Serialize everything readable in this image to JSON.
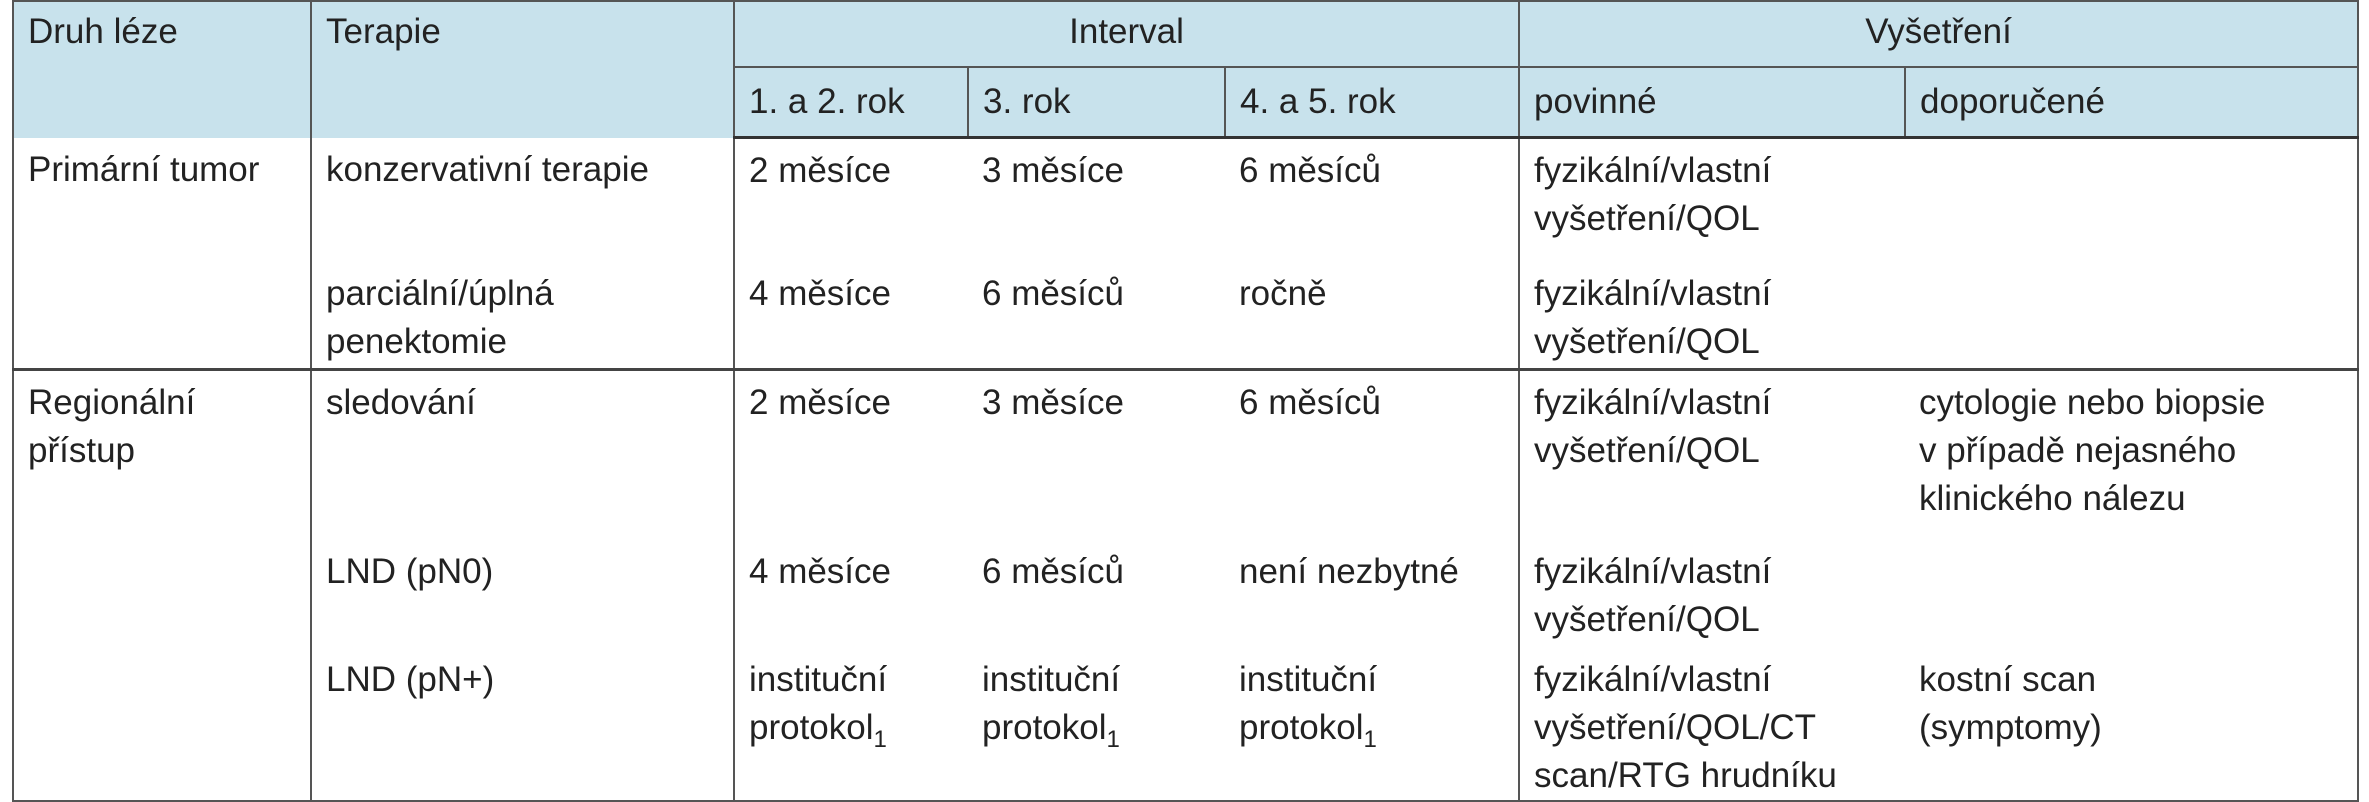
{
  "header": {
    "lesion": "Druh léze",
    "therapy": "Terapie",
    "interval": {
      "title": "Interval",
      "columns": [
        "1. a 2. rok",
        "3. rok",
        "4. a 5. rok"
      ]
    },
    "exam": {
      "title": "Vyšetření",
      "columns": [
        "povinné",
        "doporučené"
      ]
    }
  },
  "groups": [
    {
      "lesion": [
        "Primární tumor"
      ],
      "rows": [
        {
          "therapy": [
            "konzervativní terapie"
          ],
          "interval": [
            [
              "2 měsíce"
            ],
            [
              "3 měsíce"
            ],
            [
              "6 měsíců"
            ]
          ],
          "mandatory": [
            "fyzikální/vlastní",
            "vyšetření/QOL"
          ],
          "recommended": []
        },
        {
          "therapy": [
            "parciální/úplná",
            "penektomie"
          ],
          "interval": [
            [
              "4 měsíce"
            ],
            [
              "6 měsíců"
            ],
            [
              "ročně"
            ]
          ],
          "mandatory": [
            "fyzikální/vlastní",
            "vyšetření/QOL"
          ],
          "recommended": []
        }
      ]
    },
    {
      "lesion": [
        "Regionální",
        "přístup"
      ],
      "rows": [
        {
          "therapy": [
            "sledování"
          ],
          "interval": [
            [
              "2 měsíce"
            ],
            [
              "3 měsíce"
            ],
            [
              "6 měsíců"
            ]
          ],
          "mandatory": [
            "fyzikální/vlastní",
            "vyšetření/QOL"
          ],
          "recommended": [
            "cytologie nebo biopsie",
            "v případě nejasného",
            "klinického nálezu"
          ]
        },
        {
          "therapy": [
            "LND (pN0)"
          ],
          "interval": [
            [
              "4 měsíce"
            ],
            [
              "6 měsíců"
            ],
            [
              "není nezbytné"
            ]
          ],
          "mandatory": [
            "fyzikální/vlastní",
            "vyšetření/QOL"
          ],
          "recommended": []
        },
        {
          "therapy": [
            "LND (pN+)"
          ],
          "interval": [
            [
              "instituční",
              {
                "text": "protokol",
                "sub": "1"
              }
            ],
            [
              "instituční",
              {
                "text": "protokol",
                "sub": "1"
              }
            ],
            [
              "instituční",
              {
                "text": "protokol",
                "sub": "1"
              }
            ]
          ],
          "mandatory": [
            "fyzikální/vlastní",
            "vyšetření/QOL/CT",
            "scan/RTG hrudníku"
          ],
          "recommended": [
            "kostní scan",
            "(symptomy)"
          ]
        }
      ]
    }
  ]
}
